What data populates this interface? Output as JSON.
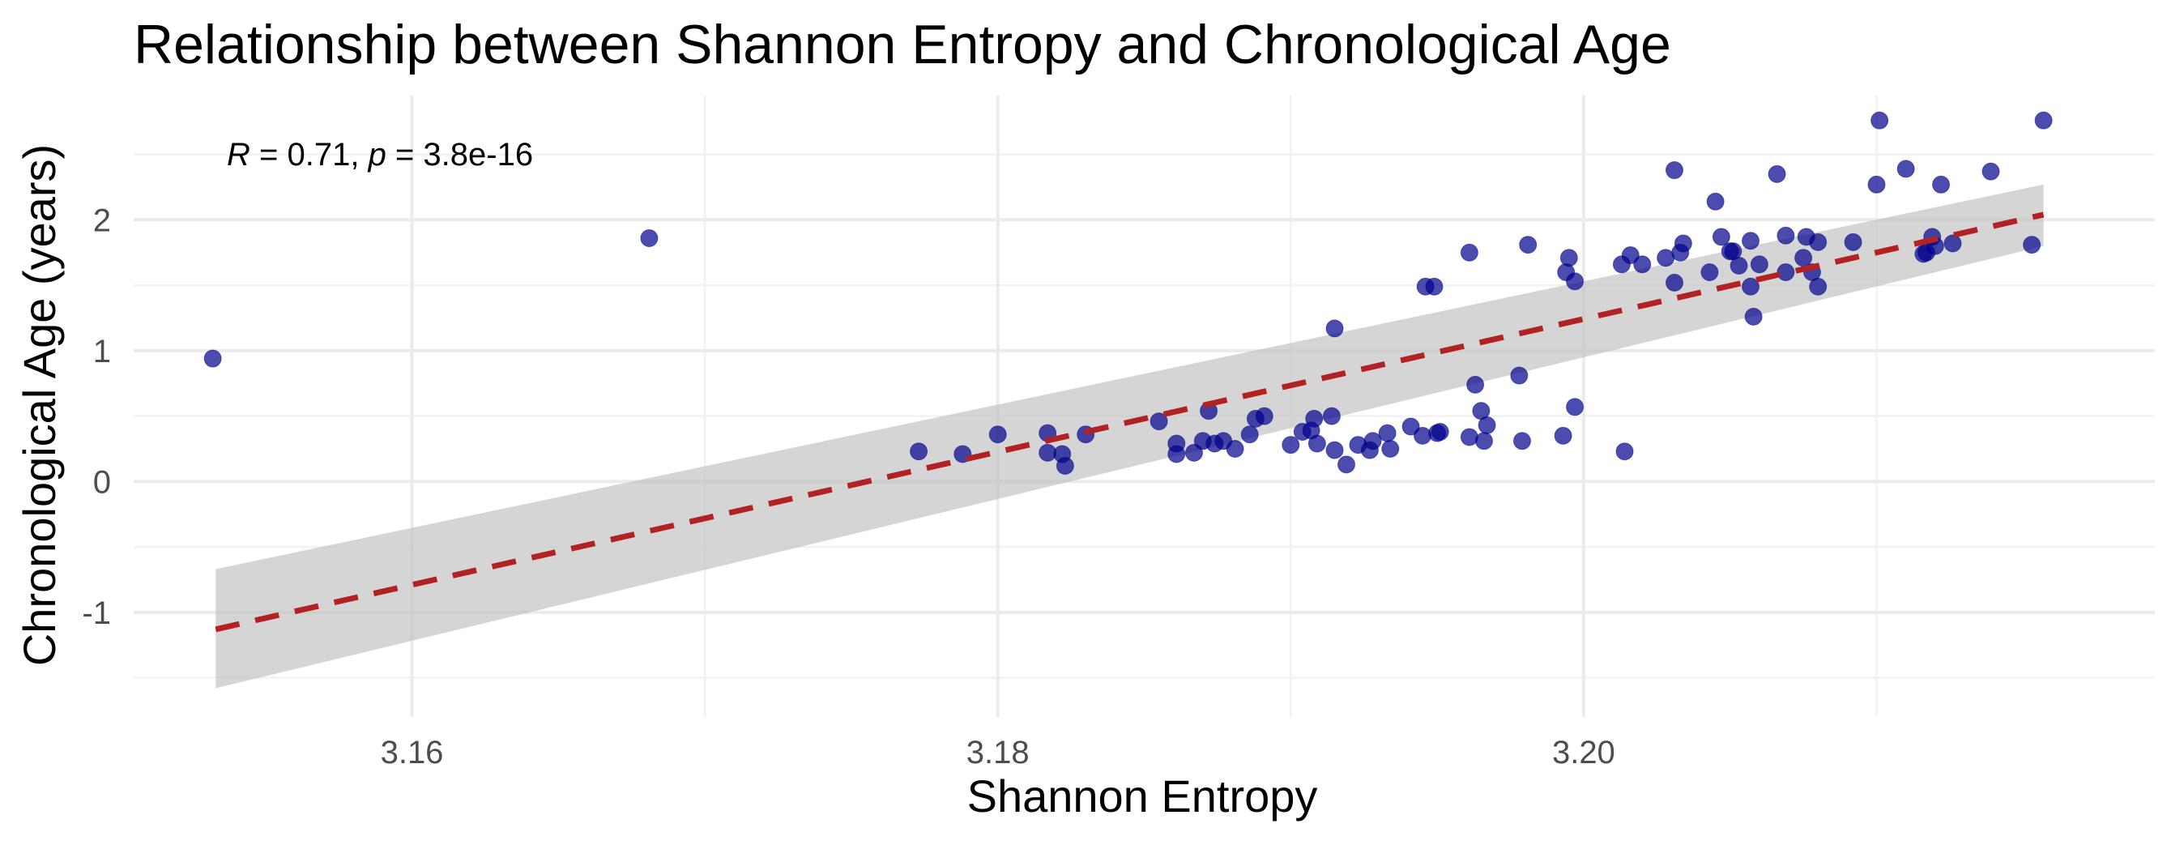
{
  "chart_data": {
    "type": "scatter",
    "title": "Relationship between Shannon Entropy and Chronological Age",
    "xlabel": "Shannon Entropy",
    "ylabel": "Chronological Age (years)",
    "annotation": {
      "r_symbol": "R",
      "r_text": " = 0.71, ",
      "p_symbol": "p",
      "p_text": " = 3.8e-16"
    },
    "xlim": [
      3.1505,
      3.2195
    ],
    "ylim": [
      -1.8,
      2.95
    ],
    "x_ticks": [
      3.16,
      3.18,
      3.2
    ],
    "x_tick_labels": [
      "3.16",
      "3.18",
      "3.20"
    ],
    "y_ticks": [
      -1,
      0,
      1,
      2
    ],
    "y_tick_labels": [
      "-1",
      "0",
      "1",
      "2"
    ],
    "grid": true,
    "colors": {
      "points": "#00008b",
      "trend": "#b22222",
      "band": "#bebebe"
    },
    "trend_line": {
      "style": "dashed",
      "x": [
        3.1533,
        3.2157
      ],
      "y": [
        -1.13,
        2.04
      ],
      "ci_lower": [
        -1.58,
        1.8
      ],
      "ci_upper": [
        -0.67,
        2.27
      ]
    },
    "points": [
      {
        "x": 3.1532,
        "y": 0.94
      },
      {
        "x": 3.1681,
        "y": 1.86
      },
      {
        "x": 3.1773,
        "y": 0.23
      },
      {
        "x": 3.1788,
        "y": 0.21
      },
      {
        "x": 3.18,
        "y": 0.36
      },
      {
        "x": 3.1817,
        "y": 0.37
      },
      {
        "x": 3.1817,
        "y": 0.22
      },
      {
        "x": 3.1822,
        "y": 0.21
      },
      {
        "x": 3.1823,
        "y": 0.12
      },
      {
        "x": 3.183,
        "y": 0.36
      },
      {
        "x": 3.1855,
        "y": 0.46
      },
      {
        "x": 3.1861,
        "y": 0.29
      },
      {
        "x": 3.1861,
        "y": 0.21
      },
      {
        "x": 3.1867,
        "y": 0.22
      },
      {
        "x": 3.187,
        "y": 0.31
      },
      {
        "x": 3.1872,
        "y": 0.54
      },
      {
        "x": 3.1874,
        "y": 0.29
      },
      {
        "x": 3.1877,
        "y": 0.31
      },
      {
        "x": 3.1881,
        "y": 0.25
      },
      {
        "x": 3.1886,
        "y": 0.36
      },
      {
        "x": 3.1888,
        "y": 0.48
      },
      {
        "x": 3.1891,
        "y": 0.5
      },
      {
        "x": 3.19,
        "y": 0.28
      },
      {
        "x": 3.1904,
        "y": 0.38
      },
      {
        "x": 3.1907,
        "y": 0.39
      },
      {
        "x": 3.1908,
        "y": 0.48
      },
      {
        "x": 3.1909,
        "y": 0.29
      },
      {
        "x": 3.1914,
        "y": 0.5
      },
      {
        "x": 3.1915,
        "y": 1.17
      },
      {
        "x": 3.1915,
        "y": 0.24
      },
      {
        "x": 3.1919,
        "y": 0.13
      },
      {
        "x": 3.1923,
        "y": 0.28
      },
      {
        "x": 3.1927,
        "y": 0.24
      },
      {
        "x": 3.1928,
        "y": 0.31
      },
      {
        "x": 3.1933,
        "y": 0.37
      },
      {
        "x": 3.1934,
        "y": 0.25
      },
      {
        "x": 3.1941,
        "y": 0.42
      },
      {
        "x": 3.1945,
        "y": 0.35
      },
      {
        "x": 3.1946,
        "y": 1.49
      },
      {
        "x": 3.1949,
        "y": 1.49
      },
      {
        "x": 3.195,
        "y": 0.37
      },
      {
        "x": 3.1951,
        "y": 0.38
      },
      {
        "x": 3.1961,
        "y": 0.34
      },
      {
        "x": 3.1961,
        "y": 1.75
      },
      {
        "x": 3.1963,
        "y": 0.74
      },
      {
        "x": 3.1965,
        "y": 0.54
      },
      {
        "x": 3.1966,
        "y": 0.31
      },
      {
        "x": 3.1967,
        "y": 0.43
      },
      {
        "x": 3.1978,
        "y": 0.81
      },
      {
        "x": 3.1979,
        "y": 0.31
      },
      {
        "x": 3.1981,
        "y": 1.81
      },
      {
        "x": 3.1993,
        "y": 0.35
      },
      {
        "x": 3.1994,
        "y": 1.6
      },
      {
        "x": 3.1995,
        "y": 1.71
      },
      {
        "x": 3.1997,
        "y": 1.53
      },
      {
        "x": 3.1997,
        "y": 0.57
      },
      {
        "x": 3.2013,
        "y": 1.66
      },
      {
        "x": 3.2014,
        "y": 0.23
      },
      {
        "x": 3.2016,
        "y": 1.73
      },
      {
        "x": 3.202,
        "y": 1.66
      },
      {
        "x": 3.2028,
        "y": 1.71
      },
      {
        "x": 3.2031,
        "y": 2.38
      },
      {
        "x": 3.2031,
        "y": 1.52
      },
      {
        "x": 3.2033,
        "y": 1.75
      },
      {
        "x": 3.2034,
        "y": 1.82
      },
      {
        "x": 3.2043,
        "y": 1.6
      },
      {
        "x": 3.2045,
        "y": 2.14
      },
      {
        "x": 3.2047,
        "y": 1.87
      },
      {
        "x": 3.205,
        "y": 1.76
      },
      {
        "x": 3.2051,
        "y": 1.76
      },
      {
        "x": 3.2053,
        "y": 1.65
      },
      {
        "x": 3.2057,
        "y": 1.84
      },
      {
        "x": 3.2057,
        "y": 1.49
      },
      {
        "x": 3.2058,
        "y": 1.26
      },
      {
        "x": 3.206,
        "y": 1.66
      },
      {
        "x": 3.2066,
        "y": 2.35
      },
      {
        "x": 3.2069,
        "y": 1.88
      },
      {
        "x": 3.2069,
        "y": 1.6
      },
      {
        "x": 3.2075,
        "y": 1.71
      },
      {
        "x": 3.2076,
        "y": 1.87
      },
      {
        "x": 3.2078,
        "y": 1.6
      },
      {
        "x": 3.208,
        "y": 1.83
      },
      {
        "x": 3.208,
        "y": 1.49
      },
      {
        "x": 3.2092,
        "y": 1.83
      },
      {
        "x": 3.21,
        "y": 2.27
      },
      {
        "x": 3.2101,
        "y": 2.76
      },
      {
        "x": 3.211,
        "y": 2.39
      },
      {
        "x": 3.2116,
        "y": 1.74
      },
      {
        "x": 3.2117,
        "y": 1.75
      },
      {
        "x": 3.2119,
        "y": 1.87
      },
      {
        "x": 3.212,
        "y": 1.8
      },
      {
        "x": 3.2122,
        "y": 2.27
      },
      {
        "x": 3.2126,
        "y": 1.82
      },
      {
        "x": 3.2139,
        "y": 2.37
      },
      {
        "x": 3.2153,
        "y": 1.81
      },
      {
        "x": 3.2157,
        "y": 2.76
      }
    ]
  }
}
